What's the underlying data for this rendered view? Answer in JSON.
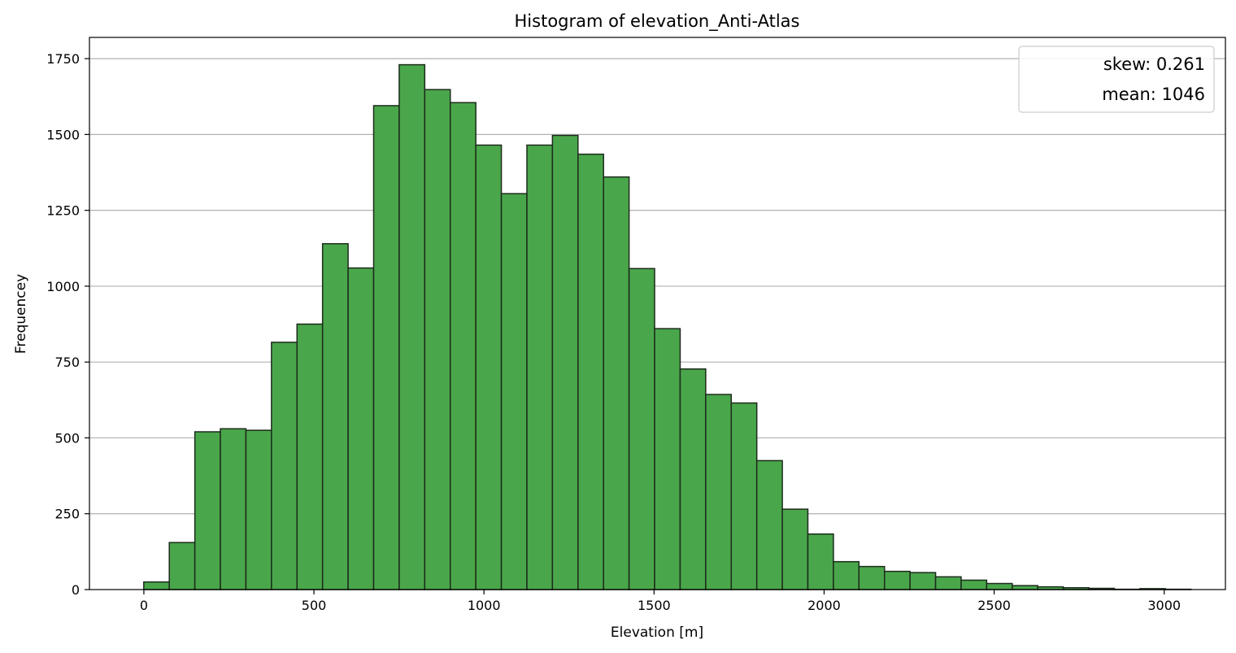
{
  "chart_data": {
    "type": "bar",
    "title": "Histogram of elevation_Anti-Atlas",
    "xlabel": "Elevation [m]",
    "ylabel": "Frequencey",
    "xlim": [
      -160,
      3180
    ],
    "ylim": [
      0,
      1820
    ],
    "xticks": [
      0,
      500,
      1000,
      1500,
      2000,
      2500,
      3000
    ],
    "yticks": [
      0,
      250,
      500,
      750,
      1000,
      1250,
      1500,
      1750
    ],
    "grid": "horizontal",
    "bar_color": "#4aa64a",
    "edge_color": "#1c2b1c",
    "legend_position": "top-right",
    "legend": [
      "skew: 0.261",
      "mean: 1046"
    ],
    "bin_width": 75.1,
    "bin_edges_start": -0.3,
    "values": [
      25,
      155,
      520,
      530,
      525,
      815,
      875,
      1140,
      1060,
      1595,
      1730,
      1648,
      1605,
      1465,
      1305,
      1465,
      1497,
      1435,
      1360,
      1058,
      860,
      727,
      643,
      615,
      425,
      265,
      183,
      92,
      76,
      60,
      56,
      42,
      31,
      20,
      13,
      9,
      6,
      4,
      1,
      3,
      1
    ]
  }
}
